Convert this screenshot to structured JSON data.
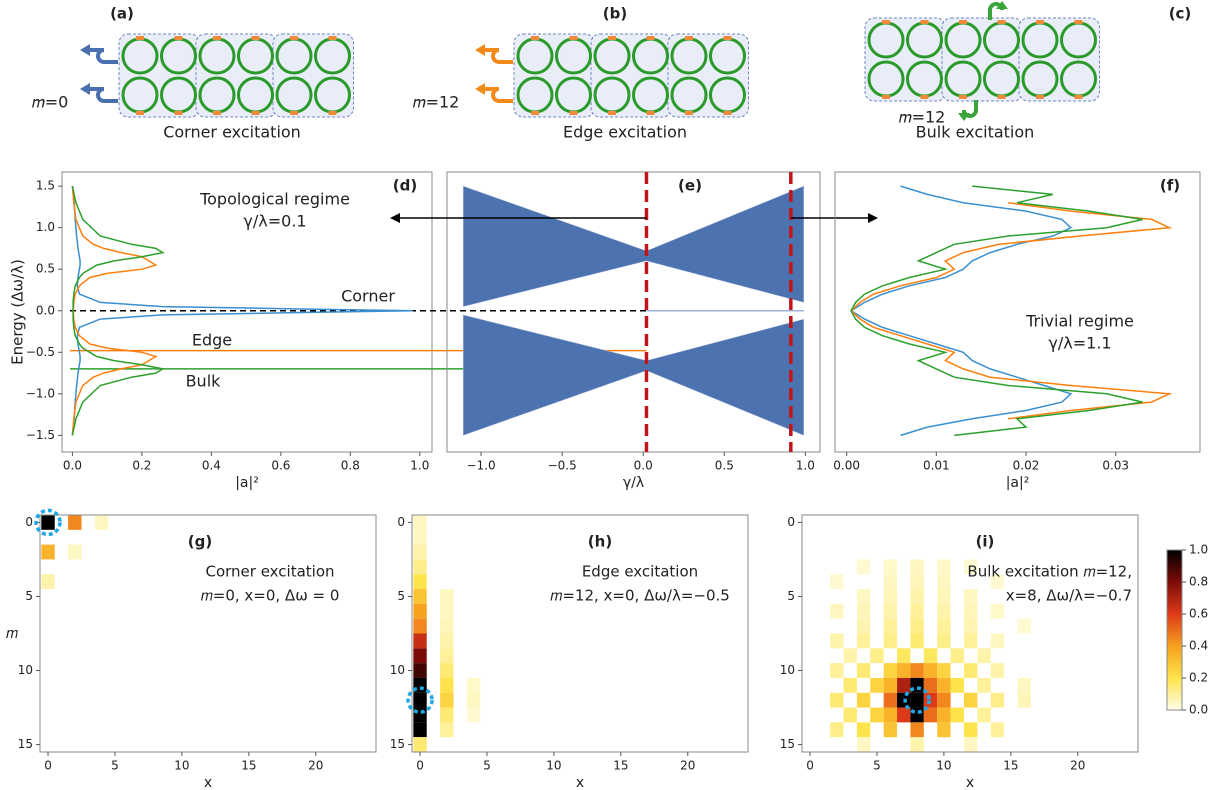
{
  "schematics": [
    {
      "label": "(a)",
      "site": "𝑚=0",
      "caption": "Corner excitation",
      "color": "#4a6fb0"
    },
    {
      "label": "(b)",
      "site": "𝑚=12",
      "caption": "Edge excitation",
      "color": "#f28a1c"
    },
    {
      "label": "(c)",
      "site": "𝑚=12",
      "caption": "Bulk excitation",
      "color": "#3aa53a"
    }
  ],
  "chart_data": [
    {
      "type": "line",
      "orientation": "horizontal",
      "label": "(d)",
      "ylabel": "Energy (Δω/λ)",
      "xlabel": "|a|²",
      "title": "Topological regime",
      "subtitle": "γ/λ=0.1",
      "xlim": [
        -0.03,
        1.035
      ],
      "ylim": [
        -1.7,
        1.67
      ],
      "xticks": [
        {
          "value": 0,
          "label": "0.0"
        },
        {
          "value": 0.2,
          "label": "0.2"
        },
        {
          "value": 0.4,
          "label": "0.4"
        },
        {
          "value": 0.6,
          "label": "0.6"
        },
        {
          "value": 0.8,
          "label": "0.8"
        },
        {
          "value": 1,
          "label": "1.0"
        }
      ],
      "yticks": [
        {
          "value": -1.5,
          "label": "−1.5"
        },
        {
          "value": -1,
          "label": "−1.0"
        },
        {
          "value": -0.5,
          "label": "−0.5"
        },
        {
          "value": 0,
          "label": "0.0"
        },
        {
          "value": 0.5,
          "label": "0.5"
        },
        {
          "value": 1,
          "label": "1.0"
        },
        {
          "value": 1.5,
          "label": "1.5"
        }
      ],
      "y": [
        -1.5,
        -1.3,
        -1.1,
        -0.9,
        -0.8,
        -0.75,
        -0.7,
        -0.65,
        -0.6,
        -0.55,
        -0.5,
        -0.45,
        -0.4,
        -0.3,
        -0.2,
        -0.1,
        -0.05,
        -0.02,
        0,
        0.02,
        0.05,
        0.1,
        0.2,
        0.3,
        0.4,
        0.45,
        0.5,
        0.55,
        0.6,
        0.65,
        0.7,
        0.75,
        0.8,
        0.9,
        1.1,
        1.3,
        1.5
      ],
      "series": [
        {
          "name": "Corner",
          "color": "#3a8fd0",
          "values": [
            0,
            0.005,
            0.008,
            0.012,
            0.015,
            0.016,
            0.018,
            0.02,
            0.022,
            0.022,
            0.02,
            0.018,
            0.016,
            0.014,
            0.02,
            0.08,
            0.26,
            0.68,
            0.98,
            0.68,
            0.26,
            0.08,
            0.02,
            0.014,
            0.016,
            0.018,
            0.02,
            0.022,
            0.022,
            0.02,
            0.018,
            0.016,
            0.015,
            0.012,
            0.008,
            0.005,
            0
          ]
        },
        {
          "name": "Edge",
          "color": "#ff7f0e",
          "values": [
            0,
            0.004,
            0.01,
            0.03,
            0.06,
            0.09,
            0.14,
            0.2,
            0.22,
            0.24,
            0.2,
            0.1,
            0.05,
            0.02,
            0.008,
            0.004,
            0.003,
            0.003,
            0.003,
            0.003,
            0.003,
            0.004,
            0.008,
            0.02,
            0.05,
            0.1,
            0.2,
            0.24,
            0.22,
            0.2,
            0.14,
            0.09,
            0.06,
            0.03,
            0.01,
            0.004,
            0
          ]
        },
        {
          "name": "Bulk",
          "color": "#2ca02c",
          "values": [
            0,
            0.01,
            0.03,
            0.08,
            0.17,
            0.24,
            0.26,
            0.2,
            0.12,
            0.07,
            0.05,
            0.03,
            0.02,
            0.008,
            0.004,
            0.002,
            0.002,
            0.002,
            0.002,
            0.002,
            0.002,
            0.002,
            0.004,
            0.008,
            0.02,
            0.03,
            0.05,
            0.07,
            0.12,
            0.2,
            0.26,
            0.24,
            0.17,
            0.08,
            0.03,
            0.01,
            0
          ]
        }
      ],
      "hlines": [
        {
          "value": 0,
          "color": "#000000",
          "dashed": true
        },
        {
          "value": -0.48,
          "color": "#ff7f0e",
          "dashed": false
        },
        {
          "value": -0.7,
          "color": "#2ca02c",
          "dashed": false
        }
      ]
    },
    {
      "type": "band",
      "label": "(e)",
      "xlabel": "γ/λ",
      "xlim": [
        -1.21,
        1.09
      ],
      "ylim": [
        -1.7,
        1.67
      ],
      "xticks": [
        {
          "value": -1,
          "label": "−1.0"
        },
        {
          "value": -0.5,
          "label": "−0.5"
        },
        {
          "value": 0,
          "label": "0.0"
        },
        {
          "value": 0.5,
          "label": "0.5"
        },
        {
          "value": 1,
          "label": "1.0"
        }
      ],
      "color": "#4c72b0",
      "x": [
        -1.11,
        0.02,
        0.99
      ],
      "bands": [
        {
          "max": [
            1.5,
            0.72,
            1.5
          ],
          "min": [
            0.05,
            0.6,
            0.1
          ]
        },
        {
          "max": [
            -0.05,
            -0.6,
            -0.1
          ],
          "min": [
            -1.5,
            -0.72,
            -1.5
          ]
        }
      ],
      "zero_mode": {
        "x": [
          0.02,
          0.99
        ],
        "values": [
          0,
          0
        ]
      },
      "vlines": [
        0.02,
        0.91
      ],
      "vline_color": "#c0161b"
    },
    {
      "type": "line",
      "orientation": "horizontal",
      "label": "(f)",
      "xlabel": "|a|²",
      "title": "Trivial regime",
      "subtitle": "γ/λ=1.1",
      "xlim": [
        -0.0013,
        0.0394
      ],
      "ylim": [
        -1.7,
        1.67
      ],
      "xticks": [
        {
          "value": 0,
          "label": "0.00"
        },
        {
          "value": 0.01,
          "label": "0.01"
        },
        {
          "value": 0.02,
          "label": "0.02"
        },
        {
          "value": 0.03,
          "label": "0.03"
        }
      ],
      "y": [
        -1.5,
        -1.4,
        -1.3,
        -1.2,
        -1.1,
        -1.0,
        -0.9,
        -0.8,
        -0.7,
        -0.6,
        -0.5,
        -0.4,
        -0.3,
        -0.2,
        -0.1,
        0,
        0.1,
        0.2,
        0.3,
        0.4,
        0.5,
        0.6,
        0.7,
        0.8,
        0.9,
        1.0,
        1.1,
        1.2,
        1.3,
        1.4,
        1.5
      ],
      "series": [
        {
          "color": "#3a8fd0",
          "values": [
            0.006,
            0.009,
            0.014,
            0.02,
            0.024,
            0.025,
            0.022,
            0.019,
            0.016,
            0.014,
            0.013,
            0.01,
            0.007,
            0.004,
            0.002,
            0.0005,
            0.002,
            0.004,
            0.007,
            0.011,
            0.013,
            0.014,
            0.016,
            0.019,
            0.023,
            0.025,
            0.024,
            0.02,
            0.013,
            0.009,
            0.006
          ]
        },
        {
          "color": "#ff7f0e",
          "values": [
            null,
            null,
            0.018,
            0.025,
            0.034,
            0.036,
            0.025,
            0.016,
            0.013,
            0.011,
            0.012,
            0.009,
            0.006,
            0.003,
            0.0015,
            0.0005,
            0.0015,
            0.003,
            0.006,
            0.01,
            0.012,
            0.011,
            0.013,
            0.017,
            0.026,
            0.036,
            0.034,
            0.025,
            0.018,
            null,
            null
          ]
        },
        {
          "color": "#2ca02c",
          "values": [
            0.012,
            0.02,
            0.019,
            0.027,
            0.033,
            0.029,
            0.018,
            0.012,
            0.01,
            0.008,
            0.011,
            0.007,
            0.004,
            0.002,
            0.001,
            0.0005,
            0.001,
            0.002,
            0.004,
            0.007,
            0.011,
            0.008,
            0.01,
            0.012,
            0.018,
            0.029,
            0.033,
            0.027,
            0.019,
            0.023,
            0.014
          ]
        }
      ]
    },
    {
      "type": "heatmap",
      "label": "(g)",
      "xlabel": "x",
      "ylabel": "𝑚",
      "xlim": [
        -0.6,
        24.5
      ],
      "ylim": [
        -0.5,
        15.5
      ],
      "xticks": [
        0,
        5,
        10,
        15,
        20
      ],
      "yticks": [
        0,
        5,
        10,
        15
      ],
      "annotation": [
        "Corner excitation",
        "𝑚=0, x=0, Δω = 0"
      ],
      "annotation_color": "#4a6fb0",
      "excitation": {
        "x": 0,
        "m": 0
      },
      "cells": [
        [
          0,
          0,
          1
        ],
        [
          2,
          0,
          0.45
        ],
        [
          4,
          0,
          0.05
        ],
        [
          0,
          2,
          0.35
        ],
        [
          2,
          2,
          0.05
        ],
        [
          0,
          4,
          0.08
        ]
      ]
    },
    {
      "type": "heatmap",
      "label": "(h)",
      "xlabel": "x",
      "xlim": [
        -0.6,
        24.5
      ],
      "ylim": [
        -0.5,
        15.5
      ],
      "xticks": [
        0,
        5,
        10,
        15,
        20
      ],
      "yticks": [
        0,
        5,
        10,
        15
      ],
      "annotation": [
        "Edge excitation",
        "𝑚=12, x=0, Δω/λ=−0.5"
      ],
      "annotation_color": "#f28a1c",
      "excitation": {
        "x": 0,
        "m": 12
      },
      "cells": [
        [
          0,
          0,
          0.05
        ],
        [
          0,
          1,
          0.05
        ],
        [
          0,
          2,
          0.08
        ],
        [
          0,
          3,
          0.12
        ],
        [
          0,
          4,
          0.2
        ],
        [
          0,
          5,
          0.3
        ],
        [
          0,
          6,
          0.4
        ],
        [
          0,
          7,
          0.45
        ],
        [
          0,
          8,
          0.65
        ],
        [
          0,
          9,
          0.8
        ],
        [
          0,
          10,
          0.9
        ],
        [
          0,
          11,
          1
        ],
        [
          0,
          12,
          1
        ],
        [
          0,
          13,
          1
        ],
        [
          0,
          14,
          1
        ],
        [
          0,
          15,
          0.15
        ],
        [
          2,
          5,
          0.05
        ],
        [
          2,
          6,
          0.05
        ],
        [
          2,
          7,
          0.06
        ],
        [
          2,
          8,
          0.08
        ],
        [
          2,
          9,
          0.1
        ],
        [
          2,
          10,
          0.15
        ],
        [
          2,
          11,
          0.2
        ],
        [
          2,
          12,
          0.25
        ],
        [
          2,
          13,
          0.15
        ],
        [
          2,
          14,
          0.1
        ],
        [
          4,
          11,
          0.04
        ],
        [
          4,
          12,
          0.05
        ],
        [
          4,
          13,
          0.03
        ]
      ]
    },
    {
      "type": "heatmap",
      "label": "(i)",
      "xlabel": "x",
      "xlim": [
        -0.6,
        24.5
      ],
      "ylim": [
        -0.5,
        15.5
      ],
      "xticks": [
        0,
        5,
        10,
        15,
        20
      ],
      "yticks": [
        0,
        5,
        10,
        15
      ],
      "annotation": [
        "Bulk excitation 𝑚=12,",
        "x=8, Δω/λ=−0.7"
      ],
      "annotation_color": "#3aa53a",
      "excitation": {
        "x": 8,
        "m": 12
      },
      "cells": [
        [
          4,
          3,
          0.03
        ],
        [
          6,
          3,
          0.04
        ],
        [
          8,
          3,
          0.05
        ],
        [
          10,
          3,
          0.04
        ],
        [
          12,
          3,
          0.03
        ],
        [
          2,
          4,
          0.03
        ],
        [
          6,
          4,
          0.05
        ],
        [
          8,
          4,
          0.06
        ],
        [
          10,
          4,
          0.05
        ],
        [
          14,
          4,
          0.03
        ],
        [
          4,
          5,
          0.05
        ],
        [
          6,
          5,
          0.06
        ],
        [
          8,
          5,
          0.08
        ],
        [
          10,
          5,
          0.06
        ],
        [
          12,
          5,
          0.05
        ],
        [
          2,
          6,
          0.05
        ],
        [
          4,
          6,
          0.06
        ],
        [
          6,
          6,
          0.08
        ],
        [
          8,
          6,
          0.1
        ],
        [
          10,
          6,
          0.08
        ],
        [
          12,
          6,
          0.06
        ],
        [
          14,
          6,
          0.04
        ],
        [
          4,
          7,
          0.07
        ],
        [
          6,
          7,
          0.1
        ],
        [
          8,
          7,
          0.12
        ],
        [
          10,
          7,
          0.1
        ],
        [
          12,
          7,
          0.07
        ],
        [
          16,
          7,
          0.03
        ],
        [
          2,
          8,
          0.08
        ],
        [
          4,
          8,
          0.1
        ],
        [
          6,
          8,
          0.12
        ],
        [
          8,
          8,
          0.15
        ],
        [
          10,
          8,
          0.12
        ],
        [
          12,
          8,
          0.1
        ],
        [
          14,
          8,
          0.05
        ],
        [
          3,
          9,
          0.08
        ],
        [
          5,
          9,
          0.12
        ],
        [
          7,
          9,
          0.18
        ],
        [
          9,
          9,
          0.18
        ],
        [
          11,
          9,
          0.12
        ],
        [
          13,
          9,
          0.08
        ],
        [
          2,
          10,
          0.1
        ],
        [
          4,
          10,
          0.15
        ],
        [
          6,
          10,
          0.25
        ],
        [
          7,
          10,
          0.35
        ],
        [
          8,
          10,
          0.45
        ],
        [
          9,
          10,
          0.35
        ],
        [
          10,
          10,
          0.25
        ],
        [
          12,
          10,
          0.15
        ],
        [
          14,
          10,
          0.08
        ],
        [
          3,
          11,
          0.15
        ],
        [
          5,
          11,
          0.25
        ],
        [
          6,
          11,
          0.35
        ],
        [
          7,
          11,
          0.7
        ],
        [
          8,
          11,
          1
        ],
        [
          9,
          11,
          0.5
        ],
        [
          10,
          11,
          0.35
        ],
        [
          11,
          11,
          0.2
        ],
        [
          13,
          11,
          0.1
        ],
        [
          16,
          11,
          0.05
        ],
        [
          2,
          12,
          0.15
        ],
        [
          4,
          12,
          0.25
        ],
        [
          6,
          12,
          0.5
        ],
        [
          7,
          12,
          1
        ],
        [
          8,
          12,
          1
        ],
        [
          9,
          12,
          0.6
        ],
        [
          10,
          12,
          0.45
        ],
        [
          12,
          12,
          0.25
        ],
        [
          14,
          12,
          0.12
        ],
        [
          16,
          12,
          0.06
        ],
        [
          3,
          13,
          0.15
        ],
        [
          5,
          13,
          0.25
        ],
        [
          6,
          13,
          0.35
        ],
        [
          7,
          13,
          0.6
        ],
        [
          8,
          13,
          1
        ],
        [
          9,
          13,
          0.5
        ],
        [
          10,
          13,
          0.35
        ],
        [
          11,
          13,
          0.2
        ],
        [
          13,
          13,
          0.1
        ],
        [
          2,
          14,
          0.12
        ],
        [
          4,
          14,
          0.2
        ],
        [
          6,
          14,
          0.3
        ],
        [
          8,
          14,
          0.45
        ],
        [
          10,
          14,
          0.3
        ],
        [
          12,
          14,
          0.2
        ],
        [
          14,
          14,
          0.1
        ],
        [
          4,
          15,
          0.05
        ],
        [
          8,
          15,
          0.08
        ],
        [
          12,
          15,
          0.05
        ]
      ]
    },
    {
      "type": "colorbar",
      "lim": [
        0,
        1
      ],
      "colors": [
        "#fffde8",
        "#fde44c",
        "#f7a11e",
        "#dd3a18",
        "#7d0c08",
        "#000000"
      ],
      "ticks": [
        {
          "value": 0,
          "label": "0.0"
        },
        {
          "value": 0.2,
          "label": "0.2"
        },
        {
          "value": 0.4,
          "label": "0.4"
        },
        {
          "value": 0.6,
          "label": "0.6"
        },
        {
          "value": 0.8,
          "label": "0.8"
        },
        {
          "value": 1,
          "label": "1.0"
        }
      ]
    }
  ]
}
